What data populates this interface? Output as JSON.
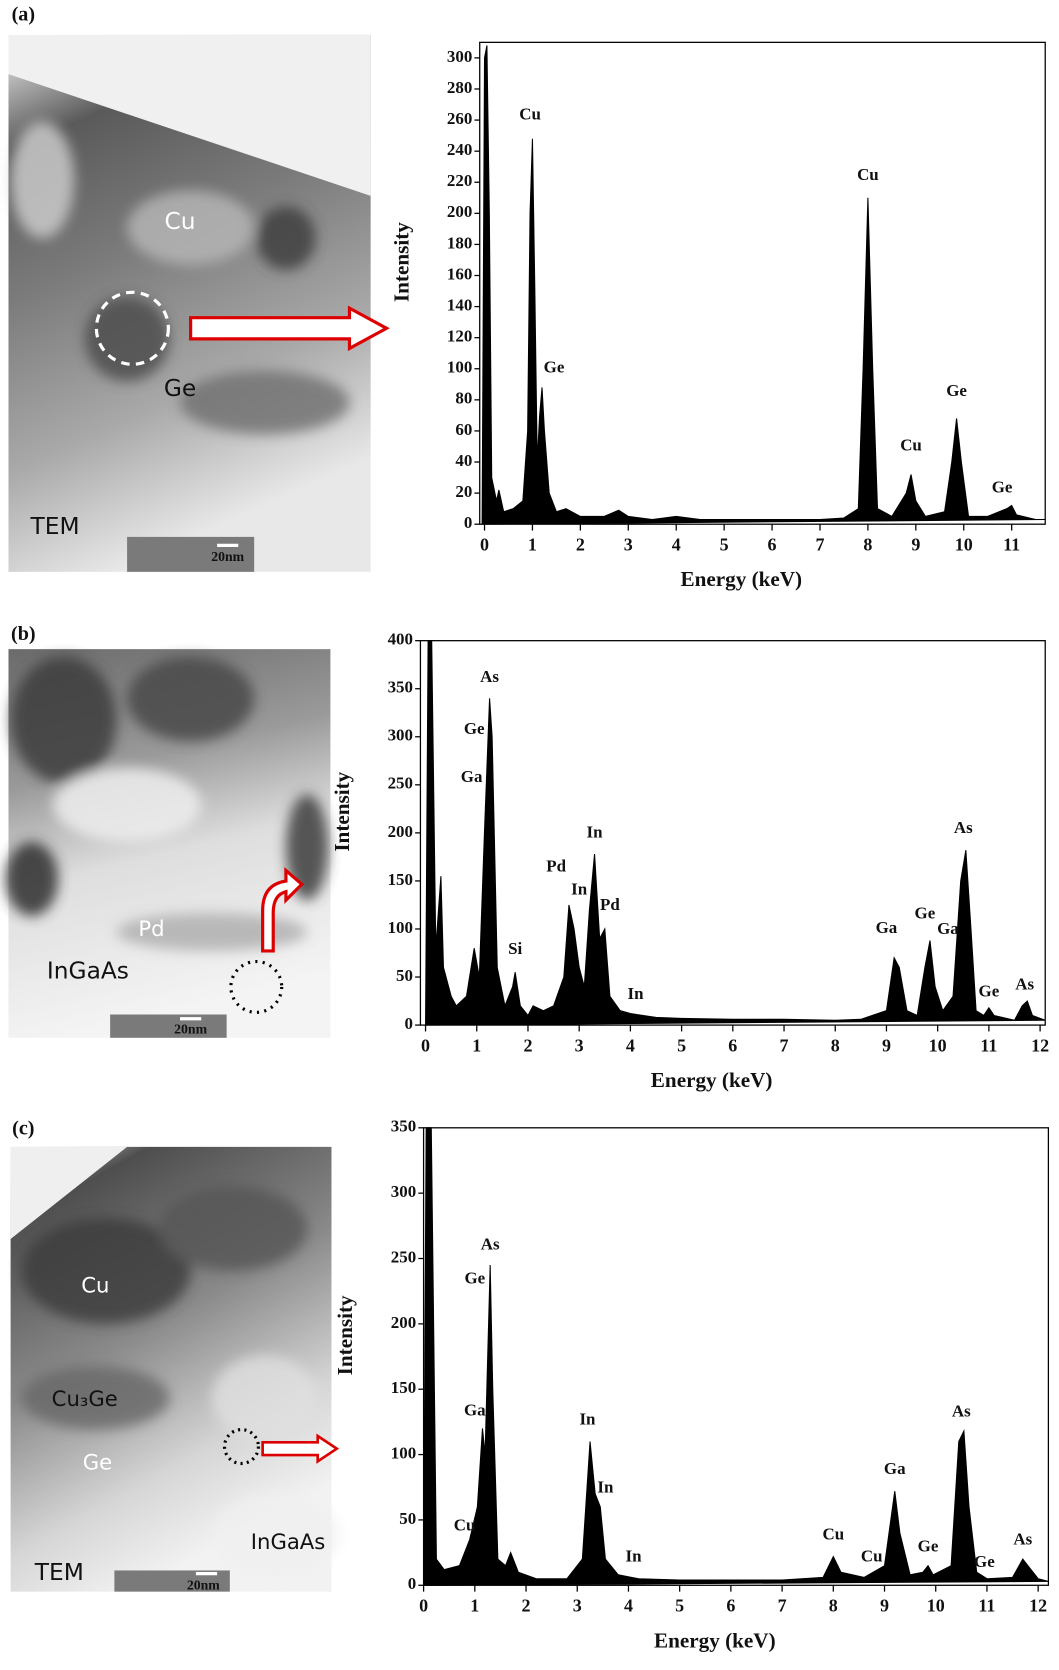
{
  "panel_labels": [
    "(a)",
    "(b)",
    "(c)"
  ],
  "micrographs": [
    {
      "labels": [
        "Cu",
        "Ge",
        "TEM"
      ],
      "scale_bar": "20nm"
    },
    {
      "labels": [
        "Pd",
        "InGaAs"
      ],
      "scale_bar": "20nm"
    },
    {
      "labels": [
        "Cu",
        "Cu₃Ge",
        "Ge",
        "TEM",
        "InGaAs"
      ],
      "scale_bar": "20nm"
    }
  ],
  "chart_data": [
    {
      "type": "area",
      "color": "#000000",
      "xlabel": "Energy (keV)",
      "ylabel": "Intensity",
      "xlim": [
        -0.1,
        11.7
      ],
      "ylim": [
        0,
        310
      ],
      "xticks": [
        0,
        1,
        2,
        3,
        4,
        5,
        6,
        7,
        8,
        9,
        10,
        11
      ],
      "yticks": [
        0,
        20,
        40,
        60,
        80,
        100,
        120,
        140,
        160,
        180,
        200,
        220,
        240,
        260,
        280,
        300
      ],
      "x": [
        -0.05,
        0,
        0.05,
        0.1,
        0.15,
        0.25,
        0.3,
        0.4,
        0.6,
        0.8,
        0.9,
        0.95,
        1.0,
        1.05,
        1.1,
        1.15,
        1.2,
        1.25,
        1.35,
        1.5,
        1.7,
        2.0,
        2.5,
        2.8,
        3.0,
        3.5,
        4.0,
        4.5,
        5,
        6,
        7,
        7.5,
        7.8,
        7.9,
        8.0,
        8.1,
        8.2,
        8.5,
        8.8,
        8.9,
        9.0,
        9.2,
        9.6,
        9.75,
        9.85,
        9.95,
        10.1,
        10.5,
        10.9,
        11.0,
        11.1,
        11.5,
        11.7
      ],
      "values": [
        0,
        300,
        308,
        200,
        30,
        15,
        22,
        8,
        10,
        15,
        60,
        200,
        248,
        150,
        40,
        70,
        88,
        60,
        20,
        8,
        10,
        5,
        5,
        9,
        5,
        3,
        5,
        3,
        3,
        3,
        3,
        4,
        10,
        100,
        210,
        100,
        10,
        5,
        20,
        32,
        15,
        5,
        8,
        40,
        68,
        40,
        5,
        5,
        10,
        12,
        6,
        3,
        3
      ],
      "peak_labels": [
        {
          "text": "Cu",
          "x": 0.95,
          "y": 263
        },
        {
          "text": "Ge",
          "x": 1.45,
          "y": 100
        },
        {
          "text": "Cu",
          "x": 8.0,
          "y": 224
        },
        {
          "text": "Cu",
          "x": 8.9,
          "y": 50
        },
        {
          "text": "Ge",
          "x": 9.85,
          "y": 85
        },
        {
          "text": "Ge",
          "x": 10.8,
          "y": 23
        }
      ]
    },
    {
      "type": "area",
      "color": "#000000",
      "xlabel": "Energy (keV)",
      "ylabel": "Intensity",
      "xlim": [
        -0.1,
        12.1
      ],
      "ylim": [
        0,
        400
      ],
      "xticks": [
        0,
        1,
        2,
        3,
        4,
        5,
        6,
        7,
        8,
        9,
        10,
        11,
        12
      ],
      "yticks": [
        0,
        50,
        100,
        150,
        200,
        250,
        300,
        350,
        400
      ],
      "x": [
        0,
        0.05,
        0.12,
        0.2,
        0.3,
        0.35,
        0.5,
        0.6,
        0.8,
        0.95,
        1.05,
        1.15,
        1.25,
        1.3,
        1.4,
        1.55,
        1.7,
        1.75,
        1.85,
        2.0,
        2.1,
        2.3,
        2.5,
        2.7,
        2.8,
        2.9,
        3.0,
        3.1,
        3.2,
        3.3,
        3.4,
        3.5,
        3.6,
        3.8,
        4.0,
        4.5,
        5,
        6,
        7,
        8,
        8.5,
        9.0,
        9.15,
        9.25,
        9.4,
        9.6,
        9.75,
        9.85,
        9.95,
        10.1,
        10.3,
        10.45,
        10.55,
        10.65,
        10.75,
        10.9,
        11.0,
        11.1,
        11.5,
        11.65,
        11.75,
        11.85,
        12.1
      ],
      "values": [
        0,
        400,
        400,
        80,
        155,
        60,
        30,
        20,
        30,
        80,
        50,
        200,
        340,
        300,
        60,
        20,
        40,
        55,
        20,
        10,
        20,
        15,
        20,
        50,
        125,
        100,
        60,
        40,
        120,
        178,
        90,
        100,
        30,
        15,
        12,
        8,
        7,
        6,
        6,
        5,
        6,
        15,
        70,
        60,
        15,
        10,
        60,
        88,
        40,
        15,
        30,
        150,
        182,
        100,
        15,
        10,
        18,
        10,
        5,
        20,
        25,
        10,
        5
      ],
      "peak_labels": [
        {
          "text": "As",
          "x": 1.25,
          "y": 361
        },
        {
          "text": "Ge",
          "x": 0.95,
          "y": 307
        },
        {
          "text": "Ga",
          "x": 0.9,
          "y": 257
        },
        {
          "text": "Si",
          "x": 1.75,
          "y": 78
        },
        {
          "text": "Pd",
          "x": 2.55,
          "y": 164
        },
        {
          "text": "In",
          "x": 3.3,
          "y": 199
        },
        {
          "text": "In",
          "x": 3.0,
          "y": 140
        },
        {
          "text": "Pd",
          "x": 3.6,
          "y": 124
        },
        {
          "text": "In",
          "x": 4.1,
          "y": 31
        },
        {
          "text": "Ga",
          "x": 9.0,
          "y": 100
        },
        {
          "text": "Ge",
          "x": 9.75,
          "y": 115
        },
        {
          "text": "Ga",
          "x": 10.2,
          "y": 99
        },
        {
          "text": "As",
          "x": 10.5,
          "y": 204
        },
        {
          "text": "Ge",
          "x": 11.0,
          "y": 34
        },
        {
          "text": "As",
          "x": 11.7,
          "y": 41
        }
      ]
    },
    {
      "type": "area",
      "color": "#000000",
      "xlabel": "Energy (keV)",
      "ylabel": "Intensity",
      "xlim": [
        0,
        12.2
      ],
      "ylim": [
        0,
        350
      ],
      "xticks": [
        0,
        1,
        2,
        3,
        4,
        5,
        6,
        7,
        8,
        9,
        10,
        11,
        12
      ],
      "yticks": [
        0,
        50,
        100,
        150,
        200,
        250,
        300,
        350
      ],
      "x": [
        0,
        0.05,
        0.15,
        0.25,
        0.4,
        0.7,
        0.9,
        1.05,
        1.15,
        1.2,
        1.3,
        1.35,
        1.45,
        1.6,
        1.7,
        1.85,
        2.2,
        2.8,
        3.1,
        3.25,
        3.35,
        3.45,
        3.55,
        3.8,
        4.2,
        5,
        6,
        7,
        7.8,
        8.0,
        8.15,
        8.6,
        9.0,
        9.2,
        9.3,
        9.5,
        9.75,
        9.85,
        9.95,
        10.3,
        10.45,
        10.55,
        10.65,
        10.8,
        11.0,
        11.5,
        11.7,
        11.8,
        12.0,
        12.2
      ],
      "values": [
        0,
        350,
        350,
        20,
        12,
        15,
        35,
        60,
        120,
        100,
        245,
        150,
        20,
        15,
        25,
        10,
        5,
        5,
        20,
        110,
        70,
        60,
        20,
        8,
        5,
        4,
        4,
        4,
        6,
        22,
        10,
        6,
        15,
        72,
        40,
        8,
        10,
        15,
        8,
        15,
        110,
        118,
        60,
        10,
        5,
        6,
        20,
        15,
        5,
        3
      ],
      "peak_labels": [
        {
          "text": "As",
          "x": 1.3,
          "y": 260
        },
        {
          "text": "Ge",
          "x": 1.0,
          "y": 234
        },
        {
          "text": "Ga",
          "x": 1.0,
          "y": 133
        },
        {
          "text": "Cu",
          "x": 0.8,
          "y": 45
        },
        {
          "text": "In",
          "x": 3.2,
          "y": 126
        },
        {
          "text": "In",
          "x": 3.55,
          "y": 74
        },
        {
          "text": "In",
          "x": 4.1,
          "y": 21
        },
        {
          "text": "Cu",
          "x": 8.0,
          "y": 38
        },
        {
          "text": "Cu",
          "x": 8.75,
          "y": 21
        },
        {
          "text": "Ga",
          "x": 9.2,
          "y": 88
        },
        {
          "text": "Ge",
          "x": 9.85,
          "y": 29
        },
        {
          "text": "As",
          "x": 10.5,
          "y": 132
        },
        {
          "text": "Ge",
          "x": 10.95,
          "y": 17
        },
        {
          "text": "As",
          "x": 11.7,
          "y": 34
        }
      ]
    }
  ]
}
